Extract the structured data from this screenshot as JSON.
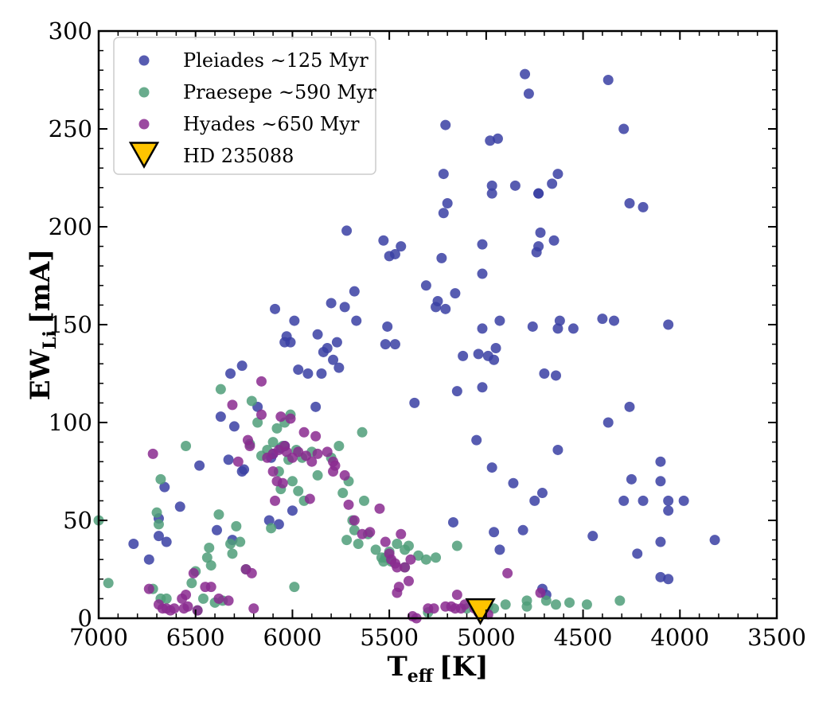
{
  "chart_data": {
    "type": "scatter",
    "xlabel": {
      "main": "T",
      "sub": "eff",
      "unit": "[K]"
    },
    "ylabel": {
      "main": "EW",
      "sub": "Li",
      "unit": "[mA]"
    },
    "xlim": [
      7000,
      3500
    ],
    "ylim": [
      0,
      300
    ],
    "x_ticks": [
      7000,
      6500,
      6000,
      5500,
      5000,
      4500,
      4000,
      3500
    ],
    "y_ticks": [
      0,
      50,
      100,
      150,
      200,
      250,
      300
    ],
    "grid": false,
    "legend_position": "top-left",
    "series": [
      {
        "name": "Pleiades ~125 Myr",
        "color": "#3a3fa3",
        "marker": "circle",
        "points": [
          [
            6820,
            38
          ],
          [
            6740,
            30
          ],
          [
            6690,
            51
          ],
          [
            6690,
            42
          ],
          [
            6660,
            67
          ],
          [
            6650,
            39
          ],
          [
            6580,
            57
          ],
          [
            6480,
            78
          ],
          [
            6390,
            45
          ],
          [
            6370,
            103
          ],
          [
            6330,
            81
          ],
          [
            6320,
            125
          ],
          [
            6310,
            40
          ],
          [
            6300,
            98
          ],
          [
            6260,
            75
          ],
          [
            6260,
            129
          ],
          [
            6250,
            76
          ],
          [
            6180,
            108
          ],
          [
            6120,
            50
          ],
          [
            6110,
            82
          ],
          [
            6100,
            84
          ],
          [
            6090,
            158
          ],
          [
            6070,
            48
          ],
          [
            6060,
            87
          ],
          [
            6040,
            141
          ],
          [
            6040,
            88
          ],
          [
            6030,
            144
          ],
          [
            6010,
            141
          ],
          [
            6000,
            55
          ],
          [
            5990,
            152
          ],
          [
            5970,
            127
          ],
          [
            5920,
            125
          ],
          [
            5880,
            108
          ],
          [
            5870,
            145
          ],
          [
            5850,
            125
          ],
          [
            5840,
            136
          ],
          [
            5820,
            138
          ],
          [
            5800,
            161
          ],
          [
            5790,
            132
          ],
          [
            5770,
            141
          ],
          [
            5760,
            128
          ],
          [
            5730,
            159
          ],
          [
            5720,
            198
          ],
          [
            5680,
            167
          ],
          [
            5670,
            152
          ],
          [
            5530,
            193
          ],
          [
            5520,
            140
          ],
          [
            5510,
            149
          ],
          [
            5500,
            185
          ],
          [
            5470,
            140
          ],
          [
            5470,
            186
          ],
          [
            5440,
            190
          ],
          [
            5370,
            110
          ],
          [
            5310,
            170
          ],
          [
            5260,
            159
          ],
          [
            5250,
            162
          ],
          [
            5230,
            184
          ],
          [
            5220,
            227
          ],
          [
            5220,
            207
          ],
          [
            5210,
            158
          ],
          [
            5210,
            252
          ],
          [
            5200,
            212
          ],
          [
            5170,
            49
          ],
          [
            5160,
            166
          ],
          [
            5150,
            116
          ],
          [
            5120,
            134
          ],
          [
            5050,
            91
          ],
          [
            5040,
            135
          ],
          [
            5020,
            118
          ],
          [
            5020,
            148
          ],
          [
            5020,
            176
          ],
          [
            5020,
            191
          ],
          [
            4990,
            134
          ],
          [
            4980,
            244
          ],
          [
            4970,
            221
          ],
          [
            4970,
            217
          ],
          [
            4970,
            77
          ],
          [
            4960,
            44
          ],
          [
            4960,
            132
          ],
          [
            4950,
            138
          ],
          [
            4940,
            245
          ],
          [
            4930,
            35
          ],
          [
            4930,
            152
          ],
          [
            4860,
            69
          ],
          [
            4850,
            221
          ],
          [
            4810,
            45
          ],
          [
            4800,
            278
          ],
          [
            4780,
            268
          ],
          [
            4760,
            149
          ],
          [
            4750,
            60
          ],
          [
            4740,
            187
          ],
          [
            4730,
            217
          ],
          [
            4730,
            190
          ],
          [
            4730,
            217
          ],
          [
            4720,
            197
          ],
          [
            4710,
            64
          ],
          [
            4710,
            15
          ],
          [
            4700,
            125
          ],
          [
            4690,
            12
          ],
          [
            4660,
            222
          ],
          [
            4650,
            193
          ],
          [
            4640,
            124
          ],
          [
            4630,
            227
          ],
          [
            4630,
            86
          ],
          [
            4630,
            148
          ],
          [
            4620,
            152
          ],
          [
            4550,
            148
          ],
          [
            4450,
            42
          ],
          [
            4400,
            153
          ],
          [
            4370,
            275
          ],
          [
            4370,
            100
          ],
          [
            4340,
            152
          ],
          [
            4290,
            60
          ],
          [
            4290,
            250
          ],
          [
            4260,
            108
          ],
          [
            4260,
            212
          ],
          [
            4250,
            71
          ],
          [
            4220,
            33
          ],
          [
            4190,
            210
          ],
          [
            4190,
            60
          ],
          [
            4100,
            70
          ],
          [
            4100,
            80
          ],
          [
            4100,
            39
          ],
          [
            4100,
            21
          ],
          [
            4060,
            150
          ],
          [
            4060,
            60
          ],
          [
            4060,
            55
          ],
          [
            4060,
            20
          ],
          [
            3980,
            60
          ],
          [
            3820,
            40
          ]
        ]
      },
      {
        "name": "Praesepe ~590 Myr",
        "color": "#4f9e79",
        "marker": "circle",
        "points": [
          [
            7000,
            50
          ],
          [
            6950,
            18
          ],
          [
            6720,
            15
          ],
          [
            6700,
            54
          ],
          [
            6690,
            48
          ],
          [
            6680,
            71
          ],
          [
            6680,
            10
          ],
          [
            6650,
            10
          ],
          [
            6550,
            88
          ],
          [
            6520,
            18
          ],
          [
            6500,
            24
          ],
          [
            6490,
            4
          ],
          [
            6460,
            10
          ],
          [
            6440,
            31
          ],
          [
            6430,
            36
          ],
          [
            6420,
            27
          ],
          [
            6400,
            8
          ],
          [
            6380,
            53
          ],
          [
            6370,
            117
          ],
          [
            6360,
            9
          ],
          [
            6320,
            38
          ],
          [
            6310,
            33
          ],
          [
            6290,
            47
          ],
          [
            6270,
            39
          ],
          [
            6240,
            25
          ],
          [
            6220,
            89
          ],
          [
            6210,
            111
          ],
          [
            6180,
            100
          ],
          [
            6160,
            83
          ],
          [
            6130,
            86
          ],
          [
            6110,
            46
          ],
          [
            6100,
            90
          ],
          [
            6080,
            97
          ],
          [
            6070,
            75
          ],
          [
            6060,
            66
          ],
          [
            6050,
            88
          ],
          [
            6040,
            100
          ],
          [
            6020,
            81
          ],
          [
            6010,
            104
          ],
          [
            6000,
            70
          ],
          [
            5990,
            16
          ],
          [
            5980,
            86
          ],
          [
            5970,
            65
          ],
          [
            5950,
            82
          ],
          [
            5940,
            60
          ],
          [
            5900,
            85
          ],
          [
            5870,
            73
          ],
          [
            5800,
            82
          ],
          [
            5760,
            88
          ],
          [
            5740,
            64
          ],
          [
            5720,
            40
          ],
          [
            5710,
            70
          ],
          [
            5690,
            50
          ],
          [
            5680,
            45
          ],
          [
            5660,
            38
          ],
          [
            5640,
            95
          ],
          [
            5630,
            60
          ],
          [
            5610,
            43
          ],
          [
            5570,
            35
          ],
          [
            5540,
            31
          ],
          [
            5530,
            29
          ],
          [
            5520,
            31
          ],
          [
            5500,
            34
          ],
          [
            5490,
            29
          ],
          [
            5460,
            38
          ],
          [
            5420,
            35
          ],
          [
            5420,
            26
          ],
          [
            5400,
            37
          ],
          [
            5350,
            32
          ],
          [
            5310,
            30
          ],
          [
            5300,
            3
          ],
          [
            5260,
            31
          ],
          [
            5150,
            37
          ],
          [
            5100,
            5
          ],
          [
            4990,
            6
          ],
          [
            4960,
            5
          ],
          [
            4900,
            7
          ],
          [
            4790,
            6
          ],
          [
            4790,
            9
          ],
          [
            4690,
            9
          ],
          [
            4640,
            7
          ],
          [
            4570,
            8
          ],
          [
            4480,
            7
          ],
          [
            4310,
            9
          ]
        ]
      },
      {
        "name": "Hyades ~650 Myr",
        "color": "#8a2a8f",
        "marker": "circle",
        "points": [
          [
            6740,
            15
          ],
          [
            6720,
            84
          ],
          [
            6690,
            7
          ],
          [
            6670,
            5
          ],
          [
            6650,
            5
          ],
          [
            6630,
            4
          ],
          [
            6610,
            5
          ],
          [
            6570,
            10
          ],
          [
            6560,
            5
          ],
          [
            6550,
            12
          ],
          [
            6540,
            6
          ],
          [
            6510,
            23
          ],
          [
            6490,
            4
          ],
          [
            6450,
            16
          ],
          [
            6420,
            16
          ],
          [
            6380,
            10
          ],
          [
            6330,
            9
          ],
          [
            6310,
            109
          ],
          [
            6280,
            80
          ],
          [
            6240,
            25
          ],
          [
            6230,
            91
          ],
          [
            6220,
            88
          ],
          [
            6210,
            23
          ],
          [
            6200,
            5
          ],
          [
            6160,
            104
          ],
          [
            6160,
            121
          ],
          [
            6130,
            82
          ],
          [
            6100,
            84
          ],
          [
            6100,
            75
          ],
          [
            6090,
            60
          ],
          [
            6080,
            70
          ],
          [
            6070,
            86
          ],
          [
            6060,
            103
          ],
          [
            6050,
            69
          ],
          [
            6040,
            88
          ],
          [
            6030,
            85
          ],
          [
            6010,
            102
          ],
          [
            6000,
            82
          ],
          [
            5970,
            85
          ],
          [
            5940,
            95
          ],
          [
            5930,
            83
          ],
          [
            5910,
            61
          ],
          [
            5900,
            80
          ],
          [
            5880,
            93
          ],
          [
            5870,
            84
          ],
          [
            5820,
            85
          ],
          [
            5790,
            75
          ],
          [
            5790,
            80
          ],
          [
            5780,
            78
          ],
          [
            5730,
            73
          ],
          [
            5710,
            58
          ],
          [
            5680,
            50
          ],
          [
            5640,
            43
          ],
          [
            5600,
            44
          ],
          [
            5550,
            56
          ],
          [
            5520,
            39
          ],
          [
            5500,
            33
          ],
          [
            5490,
            30
          ],
          [
            5470,
            28
          ],
          [
            5460,
            26
          ],
          [
            5460,
            13
          ],
          [
            5450,
            16
          ],
          [
            5440,
            43
          ],
          [
            5420,
            26
          ],
          [
            5400,
            19
          ],
          [
            5390,
            30
          ],
          [
            5380,
            1
          ],
          [
            5360,
            0
          ],
          [
            5300,
            5
          ],
          [
            5270,
            5
          ],
          [
            5210,
            6
          ],
          [
            5180,
            6
          ],
          [
            5160,
            5
          ],
          [
            5150,
            12
          ],
          [
            5130,
            5
          ],
          [
            5110,
            7
          ],
          [
            5060,
            5
          ],
          [
            5040,
            3
          ],
          [
            4990,
            2
          ],
          [
            4890,
            23
          ],
          [
            4720,
            13
          ]
        ]
      },
      {
        "name": "HD 235088",
        "color": "#ffc400",
        "marker": "inverted-triangle",
        "points": [
          [
            5030,
            3
          ]
        ]
      }
    ]
  }
}
